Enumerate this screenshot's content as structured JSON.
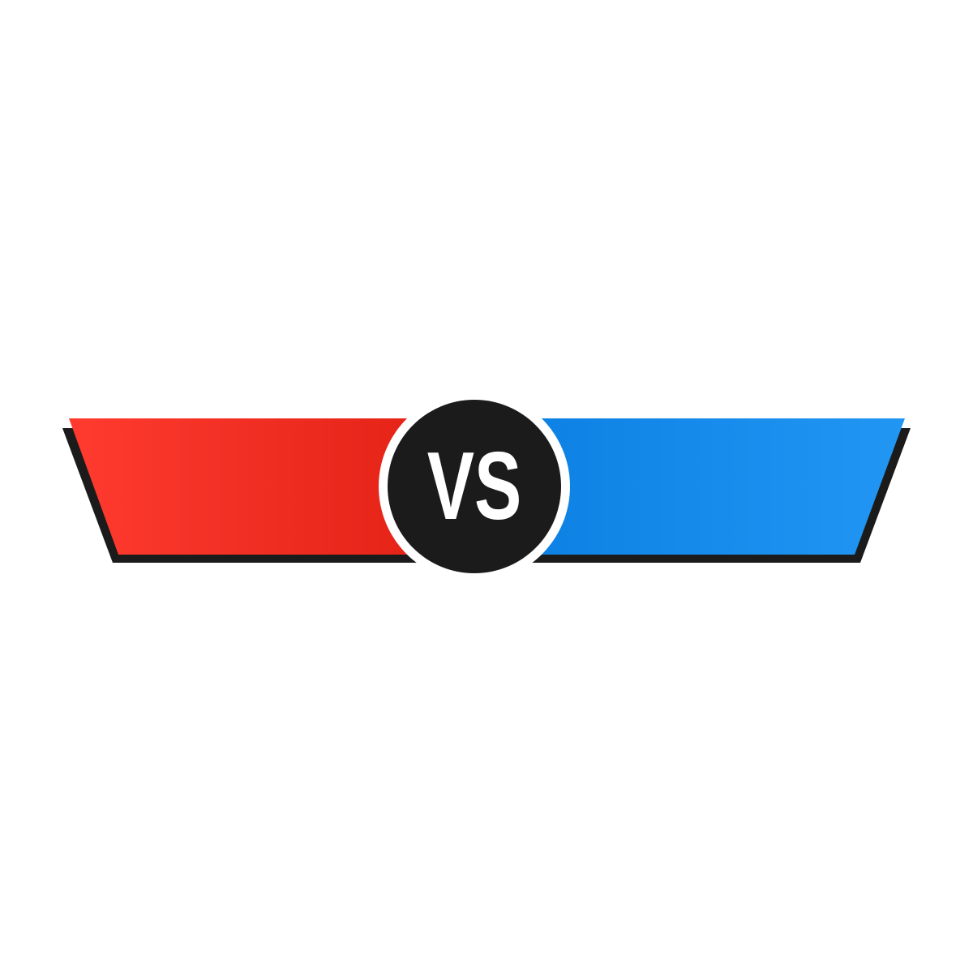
{
  "badge": {
    "text": "VS"
  },
  "colors": {
    "background": "#ffffff",
    "left_panel_start": "#ff3b30",
    "left_panel_end": "#e01e12",
    "right_panel_start": "#0b7fe2",
    "right_panel_end": "#2196f3",
    "shadow": "#1b1b1b",
    "badge_fill": "#1b1b1b",
    "badge_ring": "#ffffff",
    "badge_text": "#ffffff"
  },
  "icons": {
    "left_panel": "red-banner-shape",
    "right_panel": "blue-banner-shape",
    "badge": "vs-circle-badge"
  }
}
